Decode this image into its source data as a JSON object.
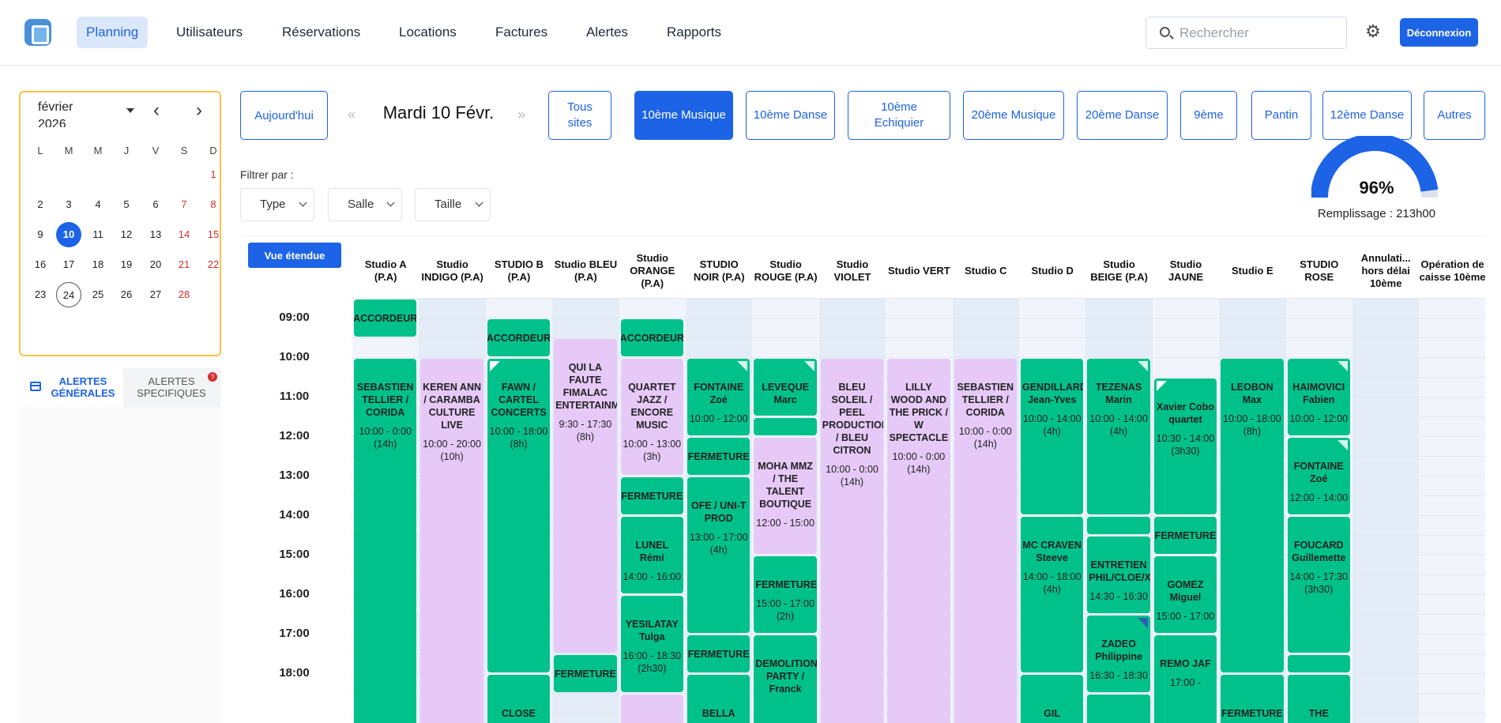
{
  "nav": {
    "items": [
      "Planning",
      "Utilisateurs",
      "Réservations",
      "Locations",
      "Factures",
      "Alertes",
      "Rapports"
    ],
    "search_placeholder": "Rechercher",
    "logout_label": "Déconnexion",
    "icons": {
      "logo": "app-logo",
      "search": "search-icon",
      "settings": "gear-icon"
    }
  },
  "calendar": {
    "month_label": "février 2026",
    "weekdays": [
      "L",
      "M",
      "M",
      "J",
      "V",
      "S",
      "D"
    ],
    "selected_day": "10",
    "today_day": "24"
  },
  "alerts": {
    "tab_general": "ALERTES GÉNÉRALES",
    "tab_specific": "ALERTES SPECIFIQUES",
    "badge": "?"
  },
  "toolbar": {
    "today_label": "Aujourd'hui",
    "prev_symbol": "«",
    "next_symbol": "»",
    "date_title": "Mardi 10 Févr.",
    "sites": [
      "Tous sites",
      "10ème Musique",
      "10ème Danse",
      "10ème Echiquier",
      "20ème Musique",
      "20ème Danse",
      "9ème",
      "Pantin",
      "12ème Danse",
      "Autres"
    ],
    "active_site": "10ème Musique"
  },
  "filters": {
    "label": "Filtrer par :",
    "items": [
      "Type",
      "Salle",
      "Taille"
    ]
  },
  "occupancy": {
    "percent": 96,
    "value_label": "96%",
    "label": "Remplissage : 213h00",
    "color": "#1d63e6"
  },
  "grid": {
    "expand_label": "Vue étendue",
    "times": [
      "09:00",
      "10:00",
      "11:00",
      "12:00",
      "13:00",
      "14:00",
      "15:00",
      "16:00",
      "17:00",
      "18:00"
    ],
    "columns": [
      "Studio A (P.A)",
      "Studio INDIGO (P.A)",
      "STUDIO B (P.A)",
      "Studio BLEU (P.A)",
      "Studio ORANGE (P.A)",
      "STUDIO NOIR (P.A)",
      "Studio ROUGE (P.A)",
      "Studio VIOLET",
      "Studio VERT",
      "Studio C",
      "Studio D",
      "Studio BEIGE (P.A)",
      "Studio JAUNE",
      "Studio E",
      "STUDIO ROSE",
      "Annulati... hors délai 10ème",
      "Opération de caisse 10ème"
    ],
    "colors": {
      "booking": "#00c18a",
      "pa_booking": "#e6c9f7"
    },
    "events": [
      {
        "col": 0,
        "start": 8.5,
        "end": 9.5,
        "color": "g",
        "title": "ACCORDEUR",
        "short": true
      },
      {
        "col": 0,
        "start": 10,
        "end": 20,
        "color": "g",
        "title": "SEBASTIEN TELLIER / CORIDA",
        "sub": "10:00 - 0:00 (14h)"
      },
      {
        "col": 1,
        "start": 10,
        "end": 20,
        "color": "p",
        "title": "KEREN ANN / CARAMBA CULTURE LIVE",
        "sub": "10:00 - 20:00 (10h)"
      },
      {
        "col": 2,
        "start": 9,
        "end": 10,
        "color": "g",
        "title": "ACCORDEUR",
        "short": true
      },
      {
        "col": 2,
        "start": 10,
        "end": 18,
        "color": "g",
        "title": "FAWN / CARTEL CONCERTS",
        "sub": "10:00 - 18:00 (8h)",
        "flag": "l"
      },
      {
        "col": 2,
        "start": 18,
        "end": 20,
        "color": "g",
        "title": "CLOSE",
        "short": true
      },
      {
        "col": 3,
        "start": 9.5,
        "end": 17.5,
        "color": "p",
        "title": "QUI LA FAUTE FIMALAC ENTERTAINMENT",
        "sub": "9:30 - 17:30 (8h)"
      },
      {
        "col": 3,
        "start": 17.5,
        "end": 18.5,
        "color": "g",
        "title": "FERMETURE",
        "short": true
      },
      {
        "col": 4,
        "start": 9,
        "end": 10,
        "color": "g",
        "title": "ACCORDEUR",
        "short": true
      },
      {
        "col": 4,
        "start": 10,
        "end": 13,
        "color": "p",
        "title": "QUARTET JAZZ / ENCORE MUSIC",
        "sub": "10:00 - 13:00 (3h)"
      },
      {
        "col": 4,
        "start": 13,
        "end": 14,
        "color": "g",
        "title": "FERMETURE",
        "short": true
      },
      {
        "col": 4,
        "start": 14,
        "end": 16,
        "color": "g",
        "title": "LUNEL Rémi",
        "sub": "14:00 - 16:00"
      },
      {
        "col": 4,
        "start": 16,
        "end": 18.5,
        "color": "g",
        "title": "YESILATAY Tulga",
        "sub": "16:00 - 18:30 (2h30)"
      },
      {
        "col": 4,
        "start": 18.5,
        "end": 20,
        "color": "p",
        "title": "",
        "short": true
      },
      {
        "col": 5,
        "start": 10,
        "end": 12,
        "color": "g",
        "title": "FONTAINE Zoé",
        "sub": "10:00 - 12:00",
        "flag": "r"
      },
      {
        "col": 5,
        "start": 12,
        "end": 13,
        "color": "g",
        "title": "FERMETURE",
        "short": true
      },
      {
        "col": 5,
        "start": 13,
        "end": 17,
        "color": "g",
        "title": "OFE / UNI-T PROD",
        "sub": "13:00 - 17:00 (4h)"
      },
      {
        "col": 5,
        "start": 17,
        "end": 18,
        "color": "g",
        "title": "FERMETURE",
        "short": true
      },
      {
        "col": 5,
        "start": 18,
        "end": 20,
        "color": "g",
        "title": "BELLA",
        "short": true
      },
      {
        "col": 6,
        "start": 10,
        "end": 11.5,
        "color": "g",
        "title": "LEVEQUE Marc",
        "sub": "",
        "flag": "r"
      },
      {
        "col": 6,
        "start": 11.5,
        "end": 12,
        "color": "g",
        "title": "",
        "short": true
      },
      {
        "col": 6,
        "start": 12,
        "end": 15,
        "color": "p",
        "title": "MOHA MMZ / THE TALENT BOUTIQUE",
        "sub": "12:00 - 15:00"
      },
      {
        "col": 6,
        "start": 15,
        "end": 17,
        "color": "g",
        "title": "FERMETURE",
        "sub": "15:00 - 17:00 (2h)"
      },
      {
        "col": 6,
        "start": 17,
        "end": 20,
        "color": "g",
        "title": "DEMOLITION PARTY / Franck",
        "sub": ""
      },
      {
        "col": 7,
        "start": 10,
        "end": 20,
        "color": "p",
        "title": "BLEU SOLEIL / PEEL PRODUCTION / BLEU CITRON",
        "sub": "10:00 - 0:00 (14h)"
      },
      {
        "col": 8,
        "start": 10,
        "end": 20,
        "color": "p",
        "title": "LILLY WOOD AND THE PRICK / W SPECTACLE",
        "sub": "10:00 - 0:00 (14h)"
      },
      {
        "col": 9,
        "start": 10,
        "end": 20,
        "color": "p",
        "title": "SEBASTIEN TELLIER / CORIDA",
        "sub": "10:00 - 0:00 (14h)"
      },
      {
        "col": 10,
        "start": 10,
        "end": 14,
        "color": "g",
        "title": "GENDILLARD Jean-Yves",
        "sub": "10:00 - 14:00 (4h)"
      },
      {
        "col": 10,
        "start": 14,
        "end": 18,
        "color": "g",
        "title": "MC CRAVEN Steeve",
        "sub": "14:00 - 18:00 (4h)"
      },
      {
        "col": 10,
        "start": 18,
        "end": 20,
        "color": "g",
        "title": "GIL",
        "short": true
      },
      {
        "col": 11,
        "start": 10,
        "end": 14,
        "color": "g",
        "title": "TEZENAS Marin",
        "sub": "10:00 - 14:00 (4h)",
        "flag": "r"
      },
      {
        "col": 11,
        "start": 14,
        "end": 14.5,
        "color": "g",
        "title": "",
        "short": true
      },
      {
        "col": 11,
        "start": 14.5,
        "end": 16.5,
        "color": "g",
        "title": "ENTRETIEN PHIL/CLOE/XAV",
        "sub": "14:30 - 16:30"
      },
      {
        "col": 11,
        "start": 16.5,
        "end": 18.5,
        "color": "g",
        "title": "ZADEO Philippine",
        "sub": "16:30 - 18:30",
        "flag": "b"
      },
      {
        "col": 11,
        "start": 18.5,
        "end": 20,
        "color": "g",
        "title": "",
        "short": true
      },
      {
        "col": 12,
        "start": 10.5,
        "end": 14,
        "color": "g",
        "title": "Xavier Cobo quartet",
        "sub": "10:30 - 14:00 (3h30)",
        "flag": "l"
      },
      {
        "col": 12,
        "start": 14,
        "end": 15,
        "color": "g",
        "title": "FERMETURE",
        "short": true
      },
      {
        "col": 12,
        "start": 15,
        "end": 17,
        "color": "g",
        "title": "GOMEZ Miguel",
        "sub": "15:00 - 17:00"
      },
      {
        "col": 12,
        "start": 17,
        "end": 20,
        "color": "g",
        "title": "REMO JAF",
        "sub": "17:00 -"
      },
      {
        "col": 13,
        "start": 10,
        "end": 18,
        "color": "g",
        "title": "LEOBON Max",
        "sub": "10:00 - 18:00 (8h)"
      },
      {
        "col": 13,
        "start": 18,
        "end": 20,
        "color": "g",
        "title": "FERMETURE",
        "short": true
      },
      {
        "col": 14,
        "start": 10,
        "end": 12,
        "color": "g",
        "title": "HAIMOVICI Fabien",
        "sub": "10:00 - 12:00",
        "flag": "r"
      },
      {
        "col": 14,
        "start": 12,
        "end": 14,
        "color": "g",
        "title": "FONTAINE Zoé",
        "sub": "12:00 - 14:00",
        "flag": "r"
      },
      {
        "col": 14,
        "start": 14,
        "end": 17.5,
        "color": "g",
        "title": "FOUCARD Guillemette",
        "sub": "14:00 - 17:30 (3h30)"
      },
      {
        "col": 14,
        "start": 17.5,
        "end": 18,
        "color": "g",
        "title": "",
        "short": true
      },
      {
        "col": 14,
        "start": 18,
        "end": 20,
        "color": "g",
        "title": "THE",
        "short": true
      }
    ]
  }
}
